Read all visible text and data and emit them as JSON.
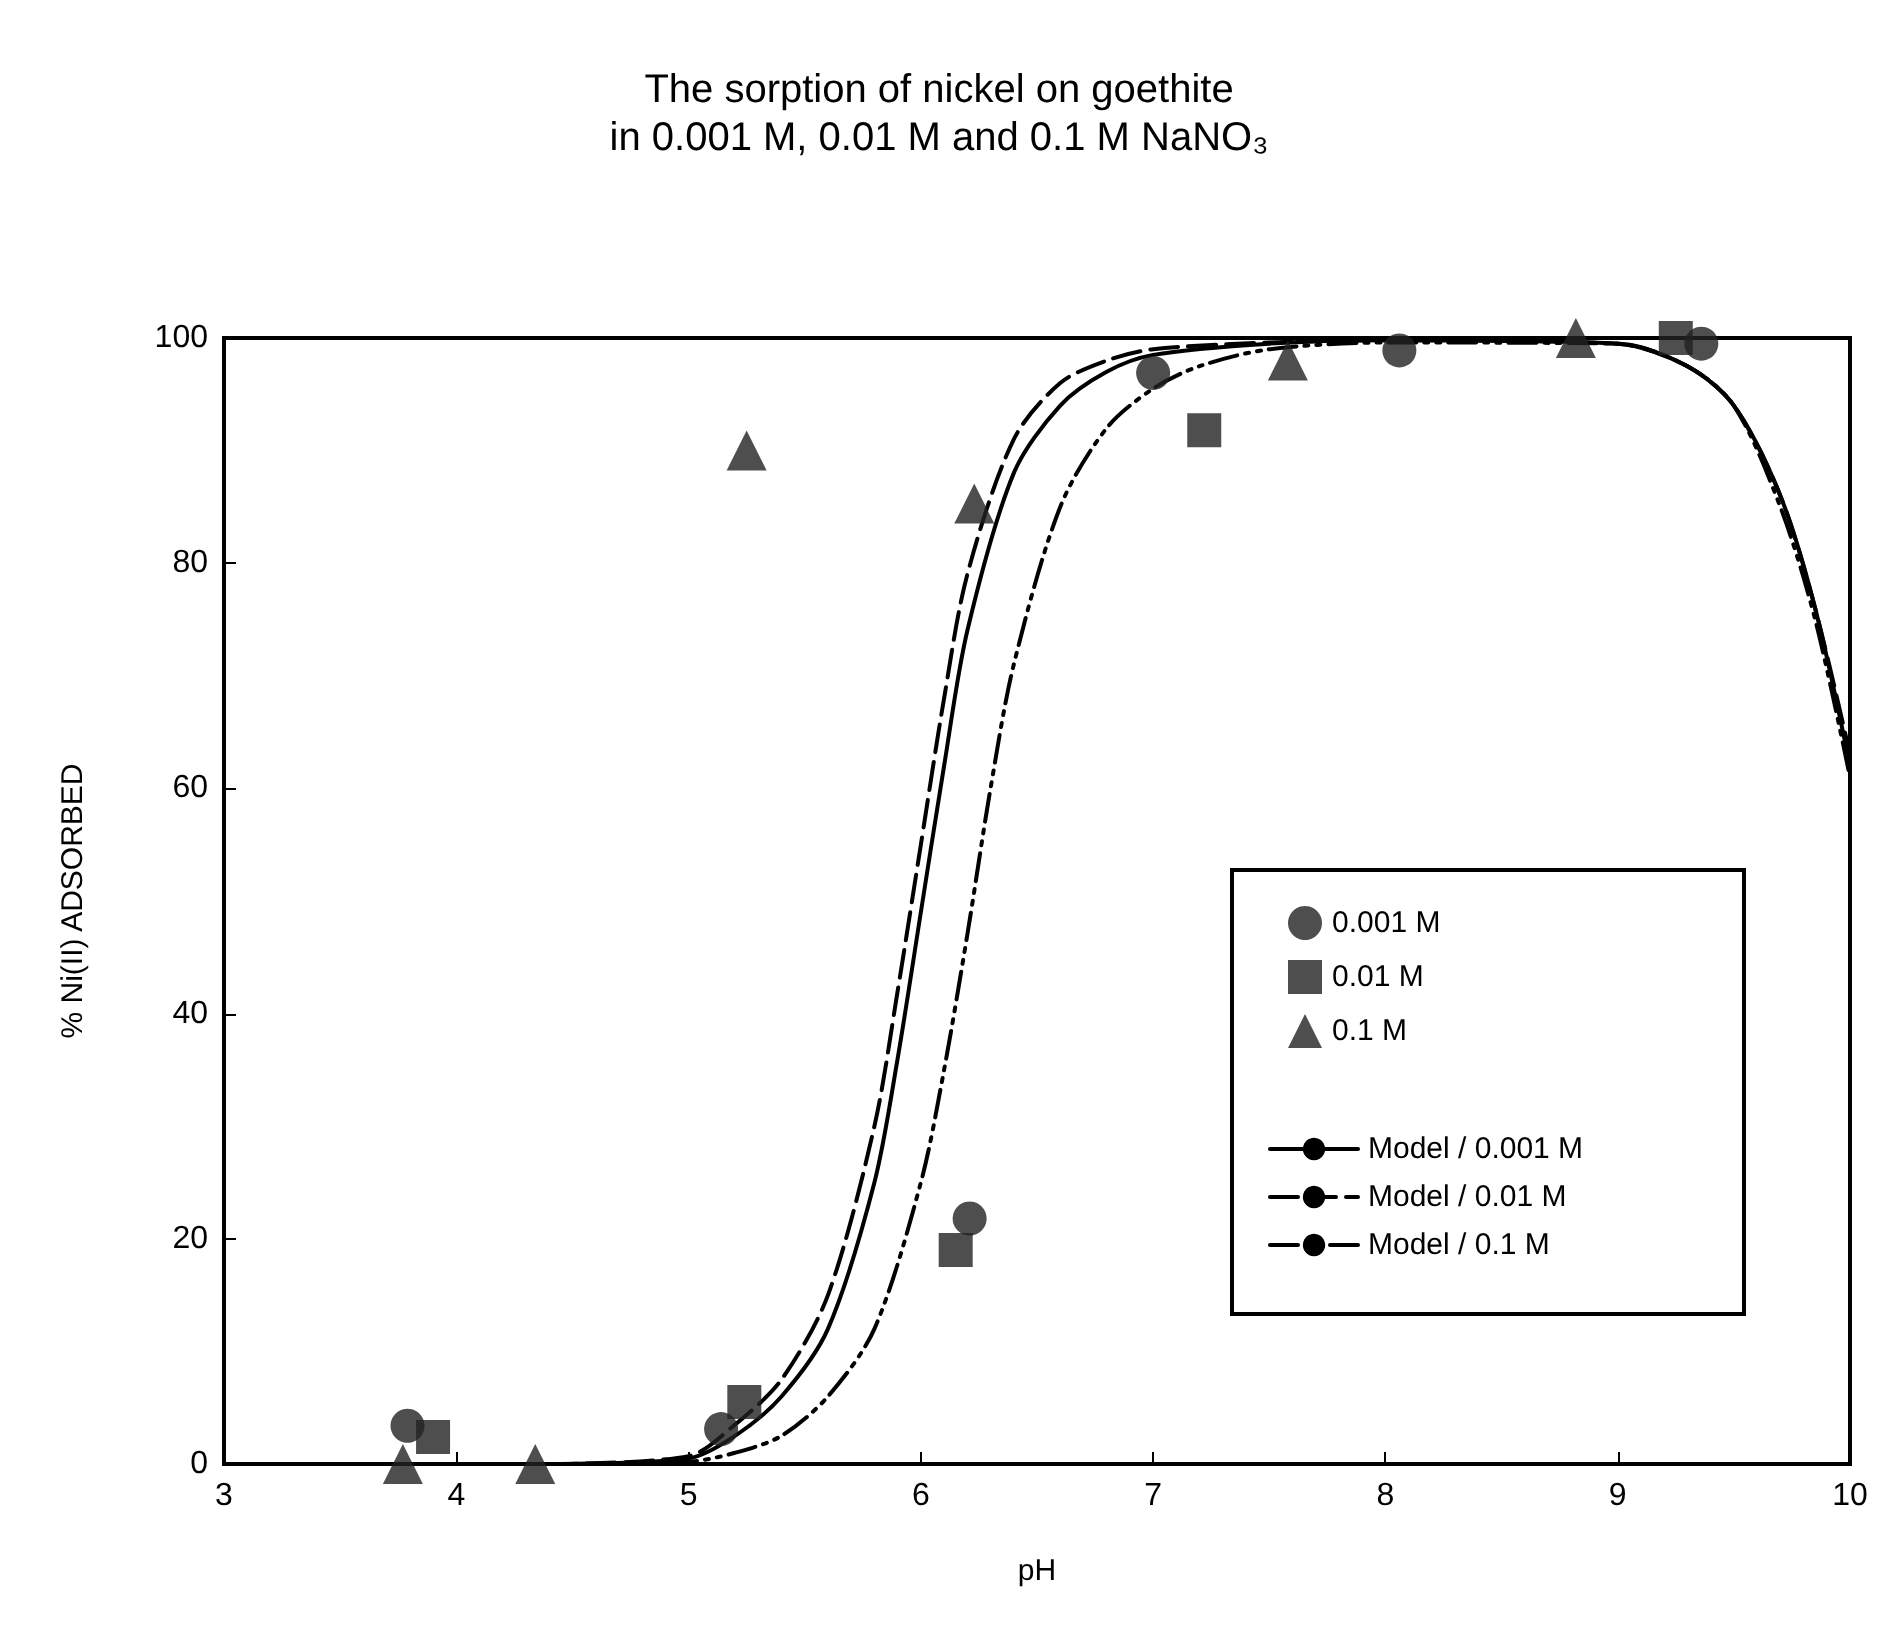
{
  "chart_data": {
    "type": "scatter",
    "title": "The sorption of nickel on goethite\nin 0.001 M, 0.01 M and 0.1 M NaNO₃",
    "xlabel": "pH",
    "ylabel": "% Ni(II) ADSORBED",
    "xlim": [
      3,
      10
    ],
    "xticks": [
      3,
      4,
      5,
      6,
      7,
      8,
      9,
      10
    ],
    "ylim": [
      0,
      100
    ],
    "yticks": [
      0,
      20,
      40,
      60,
      80,
      100
    ],
    "grid": false,
    "legend": "bottom right",
    "series": [
      {
        "name": "0.001 M",
        "marker": "circle",
        "color": "#222222",
        "x": [
          3.79,
          5.14,
          6.21,
          7.0,
          8.06,
          9.36
        ],
        "values": [
          3.4,
          3.1,
          21.8,
          96.9,
          98.9,
          99.5
        ]
      },
      {
        "name": "0.01 M",
        "marker": "square",
        "color": "#222222",
        "x": [
          3.9,
          5.24,
          6.15,
          7.22,
          9.25
        ],
        "values": [
          2.4,
          5.5,
          19,
          91.8,
          100
        ]
      },
      {
        "name": "0.1 M",
        "marker": "triangle",
        "color": "#222222",
        "x": [
          3.77,
          4.34,
          5.25,
          6.23,
          7.58,
          8.82
        ],
        "values": [
          0,
          0,
          90,
          85.3,
          98,
          100
        ]
      },
      {
        "name": "Model / 0.001 M",
        "type": "line",
        "line_style": "solid",
        "color": "#000000",
        "x": [
          4.4,
          5.0,
          5.2,
          5.4,
          5.6,
          5.8,
          5.9,
          6.0,
          6.1,
          6.2,
          6.4,
          6.6,
          6.8,
          7.0,
          7.5,
          8.0,
          9.0,
          9.3,
          9.5,
          9.7,
          9.85,
          10.0
        ],
        "values": [
          0,
          0.5,
          2.5,
          6,
          12,
          25,
          36,
          49,
          62,
          74,
          88,
          94,
          97,
          98.5,
          99.5,
          99.8,
          99.5,
          97.5,
          94,
          86,
          76,
          62
        ]
      },
      {
        "name": "Model / 0.01 M",
        "type": "line",
        "line_style": "dashed",
        "color": "#000000",
        "x": [
          4.4,
          5.0,
          5.2,
          5.4,
          5.6,
          5.8,
          5.9,
          6.0,
          6.1,
          6.2,
          6.4,
          6.6,
          6.8,
          7.0,
          7.5,
          8.0,
          9.0,
          9.3,
          9.5,
          9.7,
          9.85,
          10.0
        ],
        "values": [
          0,
          0.7,
          3.5,
          7.5,
          15,
          30,
          42,
          55,
          68,
          79,
          91,
          96,
          98,
          99,
          99.6,
          99.8,
          99.5,
          97.5,
          94,
          86,
          76,
          63
        ]
      },
      {
        "name": "Model / 0.1 M",
        "type": "line",
        "line_style": "dashdot",
        "color": "#000000",
        "x": [
          4.4,
          5.0,
          5.2,
          5.4,
          5.6,
          5.8,
          6.0,
          6.1,
          6.2,
          6.3,
          6.4,
          6.6,
          6.8,
          7.0,
          7.2,
          7.5,
          8.0,
          9.0,
          9.3,
          9.5,
          9.7,
          9.85,
          10.0
        ],
        "values": [
          0,
          0.2,
          1,
          2.5,
          6,
          12,
          25,
          35,
          47,
          60,
          71,
          85,
          92,
          95.5,
          97.5,
          99,
          99.6,
          99.5,
          97.5,
          94,
          85,
          75,
          61
        ]
      }
    ]
  }
}
